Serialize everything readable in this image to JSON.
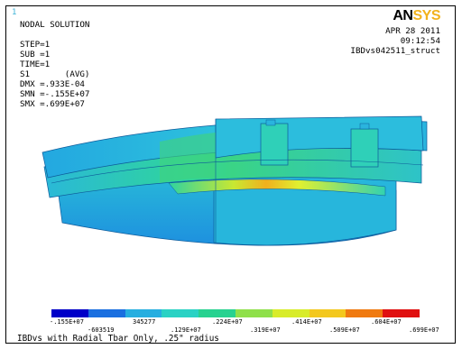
{
  "window_number": "1",
  "logo": {
    "an": "AN",
    "sys": "SYS"
  },
  "info": {
    "title": "NODAL SOLUTION",
    "step": "STEP=1",
    "sub": "SUB =1",
    "time": "TIME=1",
    "result": "S1       (AVG)",
    "dmx": "DMX =.933E-04",
    "smn": "SMN =-.155E+07",
    "smx": "SMX =.699E+07"
  },
  "date": "APR 28 2011",
  "time_of_day": "09:12:54",
  "jobname": "IBDvs042511_struct",
  "legend": {
    "colors": [
      "#0000c8",
      "#1a6fe0",
      "#26aee0",
      "#2ad2c4",
      "#27d290",
      "#8fe04a",
      "#d8ec2a",
      "#f3c81e",
      "#f07a10",
      "#e01010"
    ],
    "labels_lower": [
      "-.155E+07",
      ".129E+07",
      ".319E+07",
      ".509E+07",
      ".699E+07"
    ],
    "labels_upper": [
      "-603519",
      "345277",
      ".224E+07",
      ".414E+07",
      ".604E+07"
    ]
  },
  "caption": "IBDvs with Radial Tbar Only, .25\" radius"
}
